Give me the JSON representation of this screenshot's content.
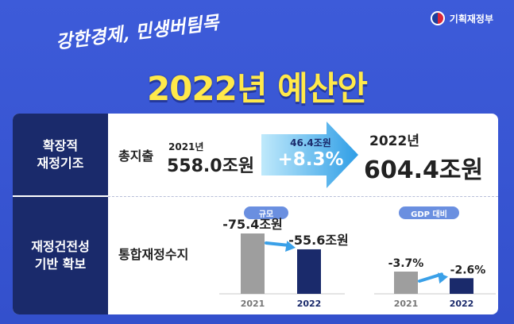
{
  "header": {
    "ministry": "기획재정부",
    "slogan": "강한경제, 민생버팀목",
    "title": "2022년 예산안"
  },
  "sections": [
    {
      "title": "확장적\n재정기조",
      "label": "총지출",
      "prev_year": "2021년",
      "prev_amount": "558.0조원",
      "increase_amount": "46.4조원",
      "increase_pct": "+8.3%",
      "next_year": "2022년",
      "next_amount": "604.4조원"
    },
    {
      "title": "재정건전성\n기반 확보",
      "label": "통합재정수지"
    }
  ],
  "chart_data": [
    {
      "type": "bar",
      "title": "규모",
      "categories": [
        "2021",
        "2022"
      ],
      "values": [
        -75.4,
        -55.6
      ],
      "value_labels": [
        "-75.4조원",
        "-55.6조원"
      ],
      "colors": [
        "#9e9e9e",
        "#1a2a6b"
      ]
    },
    {
      "type": "bar",
      "title": "GDP 대비",
      "categories": [
        "2021",
        "2022"
      ],
      "values": [
        -3.7,
        -2.6
      ],
      "value_labels": [
        "-3.7%",
        "-2.6%"
      ],
      "colors": [
        "#9e9e9e",
        "#1a2a6b"
      ]
    }
  ]
}
